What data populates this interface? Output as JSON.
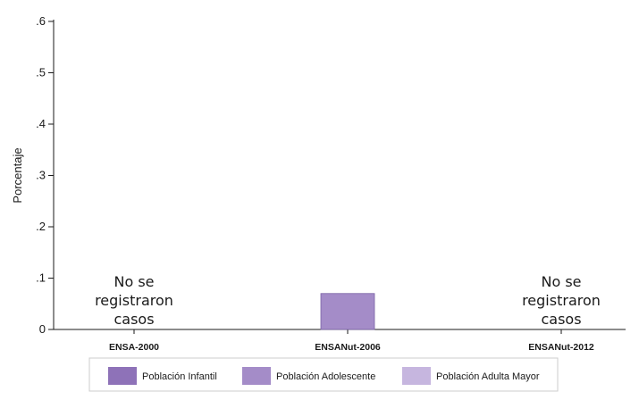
{
  "chart_data": {
    "type": "bar",
    "ylabel": "Porcentaje",
    "ylim": [
      0,
      0.6
    ],
    "yticks": [
      {
        "value": 0,
        "label": "0"
      },
      {
        "value": 0.1,
        "label": ".1"
      },
      {
        "value": 0.2,
        "label": ".2"
      },
      {
        "value": 0.3,
        "label": ".3"
      },
      {
        "value": 0.4,
        "label": ".4"
      },
      {
        "value": 0.5,
        "label": ".5"
      },
      {
        "value": 0.6,
        "label": ".6"
      }
    ],
    "categories": [
      "ENSA-2000",
      "ENSANut-2006",
      "ENSANut-2012"
    ],
    "series": [
      {
        "name": "Población Infantil",
        "color": "#8e72b8",
        "values": [
          null,
          null,
          null
        ]
      },
      {
        "name": "Población Adolescente",
        "color": "#a48cc8",
        "values": [
          null,
          0.07,
          null
        ]
      },
      {
        "name": "Población Adulta Mayor",
        "color": "#c6b6df",
        "values": [
          null,
          null,
          null
        ]
      }
    ],
    "annotations": [
      {
        "category_index": 0,
        "lines": [
          "No se",
          "registraron",
          "casos"
        ]
      },
      {
        "category_index": 2,
        "lines": [
          "No se",
          "registraron",
          "casos"
        ]
      }
    ],
    "grid": false,
    "legend_position": "bottom"
  }
}
